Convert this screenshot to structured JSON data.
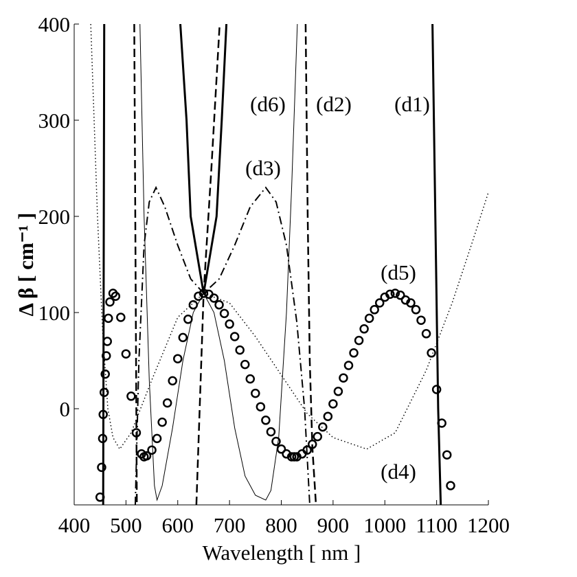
{
  "chart_data": {
    "type": "line",
    "xlabel": "Wavelength [ nm ]",
    "ylabel": "Δ β [ cm⁻¹ ]",
    "xlim": [
      400,
      1200
    ],
    "ylim": [
      -100,
      400
    ],
    "xticks": [
      400,
      500,
      600,
      700,
      800,
      900,
      1000,
      1100,
      1200
    ],
    "yticks": [
      0,
      100,
      200,
      300,
      400
    ],
    "grid": false,
    "series": [
      {
        "name": "(d1)",
        "color": "#000000",
        "style": "solid",
        "linewidth": 3,
        "x": [
          456,
          458,
          530,
          605,
          617,
          625,
          650,
          675,
          685,
          694,
          900,
          1092,
          1103,
          1108
        ],
        "values": [
          -100,
          400,
          null,
          400,
          300,
          200,
          120,
          200,
          300,
          400,
          null,
          400,
          0,
          -100
        ]
      },
      {
        "name": "(d2)",
        "color": "#000000",
        "style": "dashed",
        "linewidth": 2.5,
        "x": [
          516,
          521,
          580,
          636,
          650,
          665,
          681,
          760,
          847,
          851,
          855,
          860,
          867
        ],
        "values": [
          400,
          -100,
          null,
          -100,
          120,
          250,
          400,
          null,
          400,
          200,
          50,
          -40,
          -100
        ]
      },
      {
        "name": "(d3)",
        "color": "#000000",
        "style": "dashdot",
        "linewidth": 2,
        "x": [
          518,
          525,
          535,
          545,
          558,
          575,
          600,
          625,
          650,
          680,
          710,
          740,
          770,
          790,
          810,
          830,
          845,
          855
        ],
        "values": [
          -100,
          50,
          170,
          215,
          230,
          210,
          170,
          135,
          120,
          135,
          170,
          210,
          230,
          215,
          170,
          90,
          0,
          -100
        ]
      },
      {
        "name": "(d4)",
        "color": "#000000",
        "style": "dotted",
        "linewidth": 1.5,
        "x": [
          432,
          445,
          455,
          465,
          475,
          488,
          510,
          550,
          600,
          650,
          700,
          750,
          800,
          850,
          900,
          965,
          1020,
          1080,
          1130,
          1170,
          1200
        ],
        "values": [
          400,
          200,
          80,
          0,
          -30,
          -42,
          -25,
          30,
          95,
          120,
          110,
          75,
          35,
          -5,
          -30,
          -42,
          -25,
          40,
          110,
          175,
          225
        ]
      },
      {
        "name": "(d5)",
        "color": "#000000",
        "style": "circles",
        "linewidth": 2.5,
        "x": [
          450,
          453,
          455,
          456,
          458,
          460,
          462,
          464,
          466,
          469,
          475,
          480,
          490,
          500,
          510,
          520,
          530,
          535,
          540,
          550,
          560,
          570,
          580,
          590,
          600,
          610,
          620,
          630,
          640,
          650,
          660,
          670,
          680,
          690,
          700,
          710,
          720,
          730,
          740,
          750,
          760,
          770,
          780,
          790,
          800,
          810,
          820,
          825,
          830,
          840,
          850,
          860,
          870,
          880,
          890,
          900,
          910,
          920,
          930,
          940,
          950,
          960,
          970,
          980,
          990,
          1000,
          1010,
          1020,
          1030,
          1040,
          1050,
          1060,
          1070,
          1080,
          1090,
          1100,
          1110,
          1120,
          1127
        ],
        "values": [
          -92,
          -61,
          -31,
          -6,
          17,
          36,
          55,
          70,
          94,
          111,
          120,
          117,
          95,
          57,
          13,
          -25,
          -47,
          -50,
          -49,
          -43,
          -31,
          -14,
          6,
          29,
          52,
          74,
          93,
          108,
          117,
          120,
          119,
          115,
          108,
          99,
          88,
          75,
          61,
          46,
          31,
          16,
          2,
          -12,
          -24,
          -34,
          -42,
          -47,
          -50,
          -50,
          -50,
          -47,
          -43,
          -37,
          -29,
          -19,
          -8,
          5,
          18,
          32,
          45,
          58,
          71,
          83,
          94,
          103,
          110,
          116,
          119,
          120,
          118,
          113,
          110,
          103,
          92,
          78,
          58,
          20,
          -15,
          -48,
          -80
        ]
      },
      {
        "name": "(d6)",
        "color": "#000000",
        "style": "solid",
        "linewidth": 1,
        "x": [
          527,
          535,
          545,
          555,
          560,
          570,
          590,
          610,
          630,
          650,
          670,
          690,
          710,
          730,
          750,
          770,
          780,
          795,
          810,
          820,
          831
        ],
        "values": [
          400,
          200,
          30,
          -80,
          -95,
          -80,
          -20,
          50,
          100,
          120,
          100,
          50,
          -20,
          -70,
          -90,
          -95,
          -85,
          -30,
          100,
          230,
          400
        ]
      }
    ]
  }
}
